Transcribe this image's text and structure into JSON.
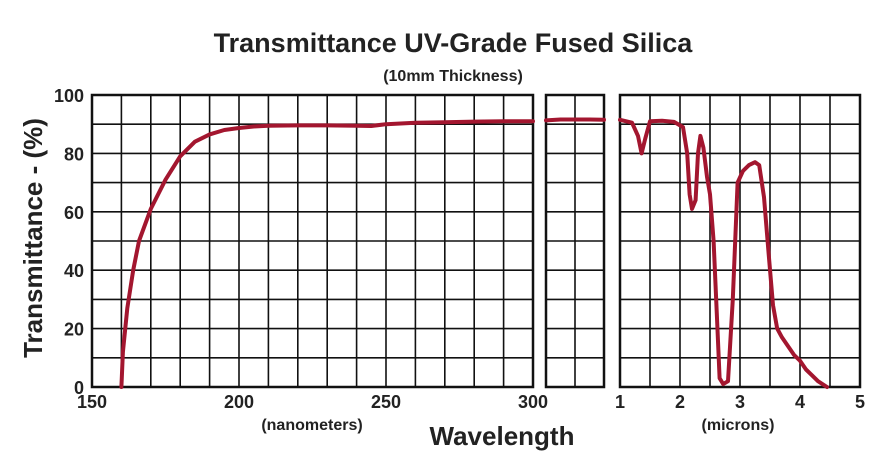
{
  "chart_data": {
    "type": "line",
    "title": "Transmittance UV-Grade Fused Silica",
    "subtitle": "(10mm Thickness)",
    "ylabel": "Transmittance - (%)",
    "xlabel": "Wavelength",
    "ylim": [
      0,
      100
    ],
    "y_ticks": [
      "0",
      "20",
      "40",
      "60",
      "80",
      "100"
    ],
    "grid": true,
    "series_color": "#a3162f",
    "panels": [
      {
        "id": "uv",
        "unit_label": "(nanometers)",
        "xlim": [
          150,
          300
        ],
        "x_ticks": [
          "150",
          "200",
          "250",
          "300"
        ],
        "grid_columns": 15,
        "points": [
          [
            160,
            0
          ],
          [
            160.5,
            12
          ],
          [
            162,
            27
          ],
          [
            164,
            40
          ],
          [
            166,
            50
          ],
          [
            170,
            61
          ],
          [
            175,
            71
          ],
          [
            180,
            79
          ],
          [
            185,
            84
          ],
          [
            190,
            86.5
          ],
          [
            195,
            88
          ],
          [
            200,
            88.7
          ],
          [
            205,
            89.2
          ],
          [
            210,
            89.5
          ],
          [
            220,
            89.6
          ],
          [
            230,
            89.6
          ],
          [
            240,
            89.5
          ],
          [
            245,
            89.4
          ],
          [
            250,
            90
          ],
          [
            260,
            90.5
          ],
          [
            270,
            90.7
          ],
          [
            280,
            90.9
          ],
          [
            290,
            91
          ],
          [
            300,
            91
          ]
        ]
      },
      {
        "id": "vis",
        "unit_label": "",
        "xlim": [
          0,
          1
        ],
        "x_ticks": [],
        "grid_columns": 2,
        "points": [
          [
            0,
            91.3
          ],
          [
            0.25,
            91.6
          ],
          [
            0.5,
            91.6
          ],
          [
            0.75,
            91.6
          ],
          [
            1,
            91.5
          ]
        ]
      },
      {
        "id": "ir",
        "unit_label": "(microns)",
        "xlim": [
          1,
          5
        ],
        "x_ticks": [
          "1",
          "2",
          "3",
          "4",
          "5"
        ],
        "grid_columns": 8,
        "points": [
          [
            1,
            91.5
          ],
          [
            1.2,
            90.5
          ],
          [
            1.3,
            86
          ],
          [
            1.36,
            80
          ],
          [
            1.42,
            85
          ],
          [
            1.5,
            91
          ],
          [
            1.7,
            91.2
          ],
          [
            1.9,
            90.8
          ],
          [
            2.05,
            89
          ],
          [
            2.12,
            80
          ],
          [
            2.16,
            66
          ],
          [
            2.2,
            61
          ],
          [
            2.26,
            64
          ],
          [
            2.3,
            80
          ],
          [
            2.34,
            86
          ],
          [
            2.39,
            82
          ],
          [
            2.45,
            72
          ],
          [
            2.5,
            66
          ],
          [
            2.56,
            50
          ],
          [
            2.62,
            22
          ],
          [
            2.66,
            3
          ],
          [
            2.72,
            1
          ],
          [
            2.8,
            2
          ],
          [
            2.88,
            30
          ],
          [
            2.96,
            70
          ],
          [
            3.05,
            74
          ],
          [
            3.15,
            76
          ],
          [
            3.25,
            77
          ],
          [
            3.32,
            76
          ],
          [
            3.4,
            65
          ],
          [
            3.48,
            45
          ],
          [
            3.55,
            28
          ],
          [
            3.62,
            20
          ],
          [
            3.7,
            17
          ],
          [
            3.8,
            14
          ],
          [
            3.9,
            11
          ],
          [
            4.0,
            9
          ],
          [
            4.1,
            6
          ],
          [
            4.2,
            4
          ],
          [
            4.3,
            2
          ],
          [
            4.45,
            0
          ]
        ]
      }
    ]
  }
}
